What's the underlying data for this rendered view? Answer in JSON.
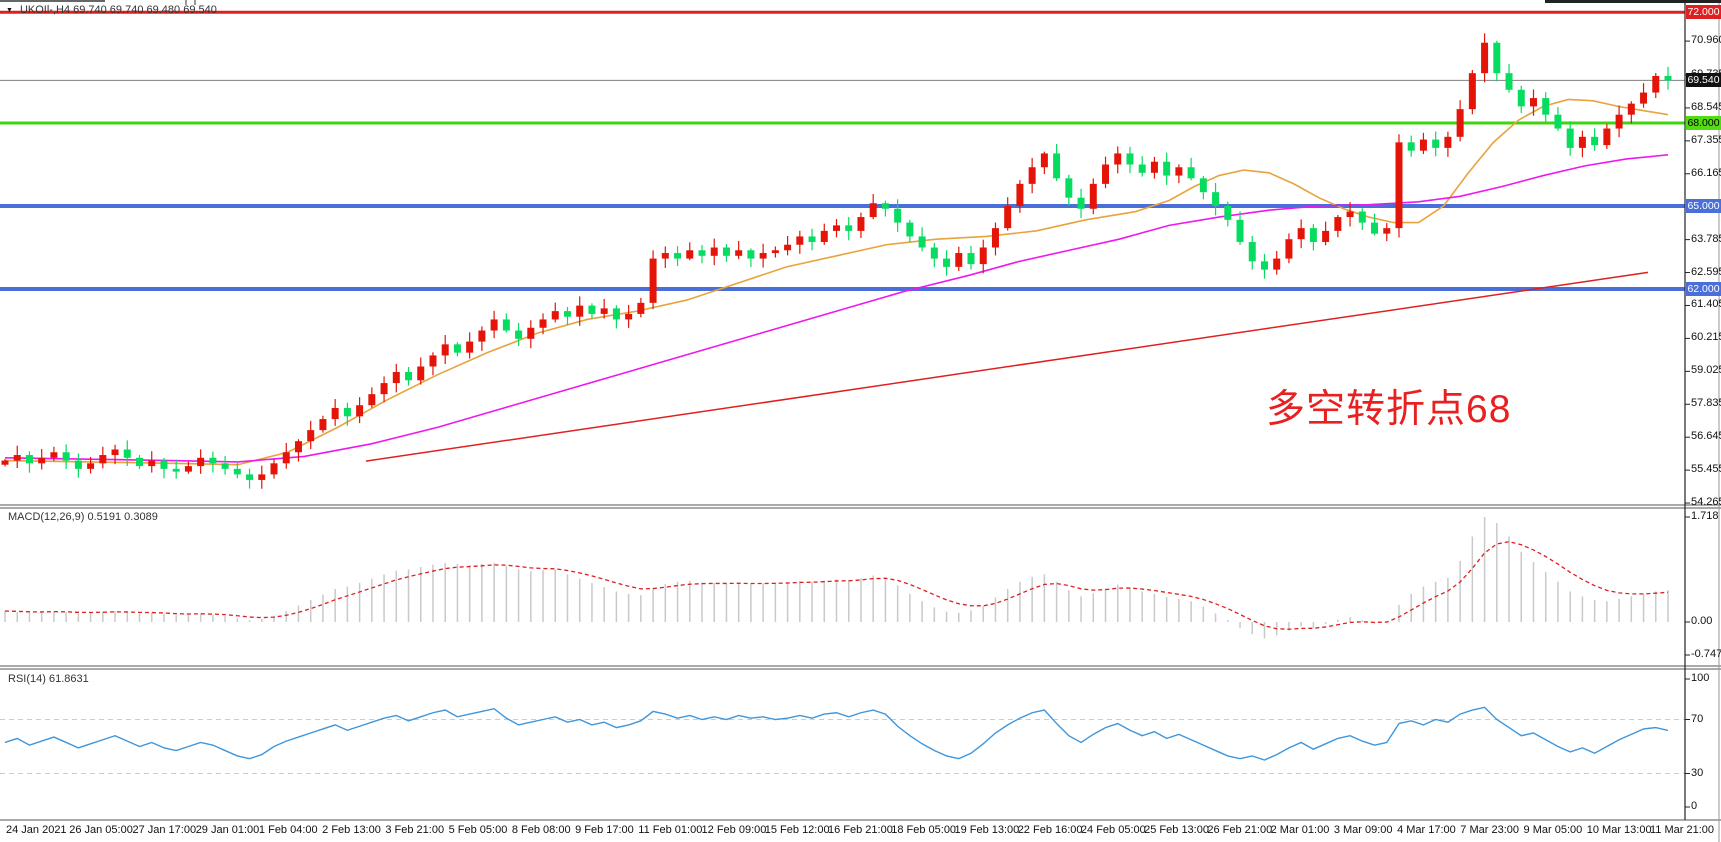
{
  "window": {
    "collapse_marker": "▼",
    "title": "UKOIl-,H4  69.740 69.740 69.480 69.540"
  },
  "annotation": {
    "text": "多空转折点68",
    "color": "#E82020"
  },
  "macd": {
    "label": "MACD(12,26,9) 0.5191 0.3089"
  },
  "rsi": {
    "label": "RSI(14) 61.8631"
  },
  "chart_data": {
    "type": "candlestick",
    "symbol": "UKOIL",
    "timeframe": "H4",
    "ohlc_display": [
      "69.740",
      "69.740",
      "69.480",
      "69.540"
    ],
    "up_color": "#E51408",
    "down_color": "#06DC60",
    "x_labels": [
      "24 Jan 2021",
      "26 Jan 05:00",
      "27 Jan 17:00",
      "29 Jan 01:00",
      "1 Feb 04:00",
      "2 Feb 13:00",
      "3 Feb 21:00",
      "5 Feb 05:00",
      "8 Feb 08:00",
      "9 Feb 17:00",
      "11 Feb 01:00",
      "12 Feb 09:00",
      "15 Feb 12:00",
      "16 Feb 21:00",
      "18 Feb 05:00",
      "19 Feb 13:00",
      "22 Feb 16:00",
      "24 Feb 05:00",
      "25 Feb 13:00",
      "26 Feb 21:00",
      "2 Mar 01:00",
      "3 Mar 09:00",
      "4 Mar 17:00",
      "7 Mar 23:00",
      "9 Mar 05:00",
      "10 Mar 13:00",
      "11 Mar 21:00"
    ],
    "price_axis_ticks": [
      "70.960",
      "69.735",
      "68.545",
      "67.355",
      "66.165",
      "63.785",
      "62.595",
      "61.405",
      "60.215",
      "59.025",
      "57.835",
      "56.645",
      "55.455",
      "54.265"
    ],
    "closes": [
      55.8,
      56.0,
      55.7,
      55.9,
      56.1,
      55.8,
      55.5,
      55.7,
      56.0,
      56.2,
      55.9,
      55.6,
      55.8,
      55.5,
      55.4,
      55.6,
      55.9,
      55.7,
      55.5,
      55.3,
      55.1,
      55.3,
      55.7,
      56.1,
      56.5,
      56.9,
      57.3,
      57.7,
      57.4,
      57.8,
      58.2,
      58.6,
      59.0,
      58.7,
      59.2,
      59.6,
      60.0,
      59.7,
      60.1,
      60.5,
      60.9,
      60.5,
      60.2,
      60.6,
      60.9,
      61.2,
      61.0,
      61.4,
      61.1,
      61.3,
      60.9,
      61.1,
      61.5,
      63.1,
      63.3,
      63.1,
      63.4,
      63.2,
      63.5,
      63.2,
      63.4,
      63.1,
      63.3,
      63.4,
      63.6,
      63.9,
      63.7,
      64.1,
      64.3,
      64.1,
      64.6,
      65.1,
      64.9,
      64.4,
      63.9,
      63.5,
      63.1,
      62.8,
      63.3,
      62.9,
      63.5,
      64.2,
      65.0,
      65.8,
      66.4,
      66.9,
      66.0,
      65.3,
      64.9,
      65.8,
      66.5,
      66.9,
      66.5,
      66.2,
      66.6,
      66.1,
      66.4,
      66.0,
      65.5,
      65.0,
      64.5,
      63.7,
      63.0,
      62.7,
      63.1,
      63.8,
      64.2,
      63.7,
      64.1,
      64.6,
      64.8,
      64.4,
      64.0,
      64.2,
      67.3,
      67.0,
      67.4,
      67.1,
      67.5,
      68.5,
      69.8,
      70.9,
      69.8,
      69.2,
      68.6,
      68.9,
      68.3,
      67.8,
      67.1,
      67.5,
      67.2,
      67.8,
      68.3,
      68.7,
      69.1,
      69.7,
      69.54
    ],
    "hlines": [
      {
        "price": 72.0,
        "label": "72.000",
        "color": "#E02020",
        "badge_bg": "#E02020",
        "badge_fg": "#FFFFFF",
        "thickness": 3
      },
      {
        "price": 68.0,
        "label": "68.000",
        "color": "#3FD40F",
        "badge_bg": "#54DC12",
        "badge_fg": "#000000",
        "thickness": 3
      },
      {
        "price": 65.0,
        "label": "65.000",
        "color": "#4A6FD8",
        "badge_bg": "#4A6FD8",
        "badge_fg": "#FFFFFF",
        "thickness": 4
      },
      {
        "price": 62.0,
        "label": "62.000",
        "color": "#4A6FD8",
        "badge_bg": "#4A6FD8",
        "badge_fg": "#FFFFFF",
        "thickness": 4
      }
    ],
    "current_price": {
      "value": 69.54,
      "label": "69.540",
      "line_color": "#808080",
      "badge_bg": "#111111",
      "badge_fg": "#FFFFFF"
    },
    "ma_fast": {
      "name": "fast-ma",
      "color": "#E8A33C",
      "points": [
        [
          0,
          55.8
        ],
        [
          0.05,
          55.75
        ],
        [
          0.1,
          55.7
        ],
        [
          0.14,
          55.65
        ],
        [
          0.17,
          56.1
        ],
        [
          0.2,
          57.0
        ],
        [
          0.23,
          58.0
        ],
        [
          0.26,
          58.9
        ],
        [
          0.29,
          59.7
        ],
        [
          0.32,
          60.4
        ],
        [
          0.35,
          60.9
        ],
        [
          0.38,
          61.2
        ],
        [
          0.41,
          61.6
        ],
        [
          0.44,
          62.2
        ],
        [
          0.47,
          62.8
        ],
        [
          0.5,
          63.2
        ],
        [
          0.53,
          63.6
        ],
        [
          0.56,
          63.8
        ],
        [
          0.59,
          63.9
        ],
        [
          0.62,
          64.1
        ],
        [
          0.65,
          64.5
        ],
        [
          0.68,
          64.8
        ],
        [
          0.7,
          65.2
        ],
        [
          0.715,
          65.7
        ],
        [
          0.73,
          66.1
        ],
        [
          0.745,
          66.3
        ],
        [
          0.76,
          66.2
        ],
        [
          0.775,
          65.8
        ],
        [
          0.79,
          65.3
        ],
        [
          0.805,
          64.9
        ],
        [
          0.82,
          64.6
        ],
        [
          0.835,
          64.4
        ],
        [
          0.85,
          64.4
        ],
        [
          0.865,
          65.0
        ],
        [
          0.88,
          66.2
        ],
        [
          0.895,
          67.3
        ],
        [
          0.91,
          68.1
        ],
        [
          0.925,
          68.6
        ],
        [
          0.94,
          68.85
        ],
        [
          0.955,
          68.8
        ],
        [
          0.97,
          68.6
        ],
        [
          0.985,
          68.45
        ],
        [
          1,
          68.3
        ]
      ]
    },
    "ma_slow": {
      "name": "slow-ma",
      "color": "#EE18EE",
      "points": [
        [
          0,
          55.9
        ],
        [
          0.05,
          55.85
        ],
        [
          0.1,
          55.8
        ],
        [
          0.14,
          55.75
        ],
        [
          0.18,
          55.95
        ],
        [
          0.22,
          56.4
        ],
        [
          0.26,
          57.0
        ],
        [
          0.3,
          57.7
        ],
        [
          0.34,
          58.4
        ],
        [
          0.38,
          59.1
        ],
        [
          0.42,
          59.8
        ],
        [
          0.46,
          60.5
        ],
        [
          0.5,
          61.2
        ],
        [
          0.54,
          61.9
        ],
        [
          0.58,
          62.5
        ],
        [
          0.61,
          63.0
        ],
        [
          0.64,
          63.4
        ],
        [
          0.67,
          63.8
        ],
        [
          0.7,
          64.3
        ],
        [
          0.73,
          64.6
        ],
        [
          0.76,
          64.85
        ],
        [
          0.79,
          65.0
        ],
        [
          0.82,
          65.05
        ],
        [
          0.85,
          65.15
        ],
        [
          0.875,
          65.35
        ],
        [
          0.9,
          65.7
        ],
        [
          0.925,
          66.1
        ],
        [
          0.95,
          66.45
        ],
        [
          0.975,
          66.7
        ],
        [
          1,
          66.85
        ]
      ]
    },
    "trendline": {
      "color": "#E02020",
      "points": [
        [
          0.217,
          55.78
        ],
        [
          0.988,
          62.6
        ]
      ]
    },
    "macd": {
      "params": "12,26,9",
      "main_value": 0.5191,
      "signal_value": 0.3089,
      "hist_color": "#C9C9C9",
      "signal_color": "#DD2020",
      "axis_ticks": [
        "1.718",
        "0.00",
        "-0.7475"
      ],
      "values": [
        0.18,
        0.16,
        0.15,
        0.16,
        0.18,
        0.16,
        0.14,
        0.15,
        0.17,
        0.18,
        0.16,
        0.14,
        0.15,
        0.13,
        0.11,
        0.12,
        0.14,
        0.12,
        0.1,
        0.06,
        0.03,
        0.05,
        0.1,
        0.18,
        0.27,
        0.36,
        0.45,
        0.54,
        0.58,
        0.64,
        0.71,
        0.78,
        0.84,
        0.86,
        0.9,
        0.94,
        0.97,
        0.95,
        0.93,
        0.95,
        0.97,
        0.92,
        0.86,
        0.83,
        0.85,
        0.86,
        0.78,
        0.71,
        0.64,
        0.57,
        0.5,
        0.46,
        0.44,
        0.56,
        0.62,
        0.66,
        0.67,
        0.65,
        0.64,
        0.63,
        0.64,
        0.62,
        0.63,
        0.64,
        0.65,
        0.67,
        0.66,
        0.68,
        0.7,
        0.68,
        0.72,
        0.76,
        0.73,
        0.6,
        0.46,
        0.34,
        0.24,
        0.17,
        0.15,
        0.19,
        0.26,
        0.4,
        0.54,
        0.66,
        0.74,
        0.78,
        0.66,
        0.52,
        0.42,
        0.47,
        0.55,
        0.61,
        0.56,
        0.5,
        0.46,
        0.41,
        0.38,
        0.34,
        0.25,
        0.14,
        0.03,
        -0.1,
        -0.2,
        -0.27,
        -0.22,
        -0.14,
        -0.07,
        -0.1,
        -0.03,
        0.04,
        0.08,
        0.03,
        -0.03,
        0.01,
        0.28,
        0.46,
        0.58,
        0.66,
        0.72,
        1.0,
        1.4,
        1.718,
        1.62,
        1.4,
        1.15,
        0.98,
        0.82,
        0.66,
        0.5,
        0.42,
        0.36,
        0.34,
        0.38,
        0.42,
        0.46,
        0.5,
        0.52
      ]
    },
    "rsi": {
      "period": 14,
      "value": 61.8631,
      "line_color": "#3E96DC",
      "level_color": "#CCCCCC",
      "levels": [
        70,
        30
      ],
      "axis_ticks": [
        "100",
        "70",
        "30",
        "0"
      ],
      "values": [
        53,
        56,
        51,
        54,
        57,
        53,
        49,
        52,
        55,
        58,
        54,
        50,
        53,
        49,
        47,
        50,
        53,
        51,
        47,
        43,
        41,
        44,
        50,
        54,
        57,
        60,
        63,
        66,
        62,
        65,
        68,
        71,
        73,
        69,
        72,
        75,
        77,
        72,
        74,
        76,
        78,
        71,
        66,
        68,
        70,
        72,
        68,
        70,
        66,
        68,
        64,
        66,
        69,
        76,
        74,
        71,
        73,
        70,
        72,
        70,
        73,
        71,
        72,
        70,
        71,
        73,
        71,
        74,
        75,
        72,
        75,
        77,
        74,
        65,
        58,
        52,
        47,
        43,
        41,
        45,
        52,
        60,
        66,
        71,
        75,
        77,
        67,
        58,
        53,
        59,
        64,
        67,
        62,
        58,
        61,
        56,
        59,
        55,
        51,
        47,
        43,
        41,
        43,
        40,
        44,
        49,
        53,
        48,
        52,
        56,
        58,
        54,
        51,
        53,
        67,
        69,
        66,
        70,
        68,
        74,
        77,
        79,
        70,
        64,
        58,
        60,
        55,
        50,
        46,
        49,
        45,
        50,
        55,
        59,
        63,
        64,
        61.86
      ]
    }
  }
}
